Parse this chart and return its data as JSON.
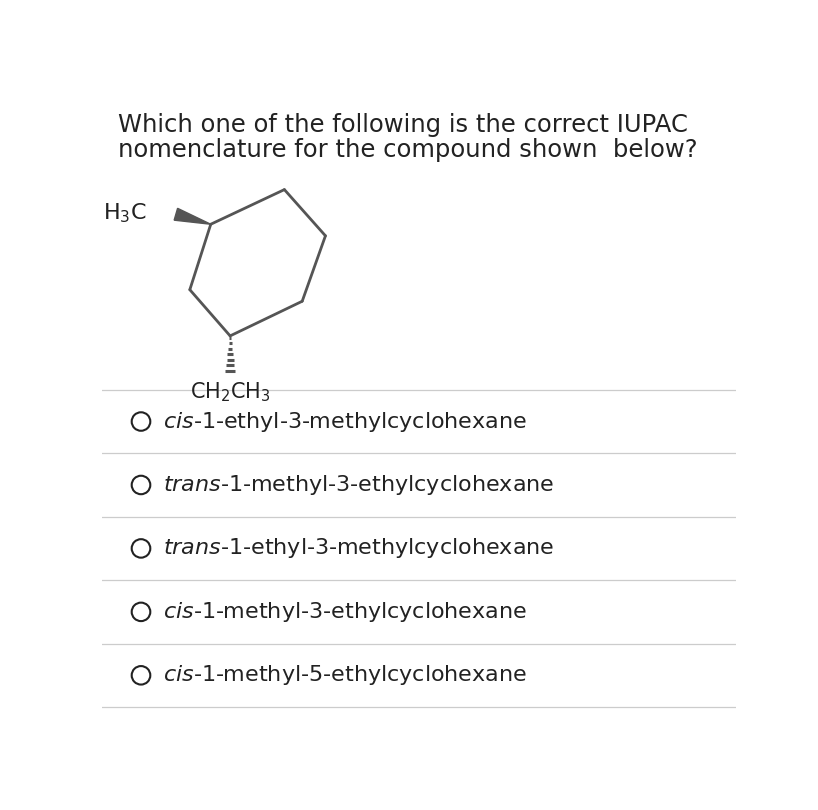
{
  "title_line1": "Which one of the following is the correct IUPAC",
  "title_line2": "nomenclature for the compound shown  below?",
  "title_fontsize": 17.5,
  "title_color": "#222222",
  "bg_color": "#ffffff",
  "options": [
    {
      "label_italic": "cis",
      "label_rest": "-1-ethyl-3-methylcyclohexane"
    },
    {
      "label_italic": "trans",
      "label_rest": "-1-methyl-3-ethylcyclohexane"
    },
    {
      "label_italic": "trans",
      "label_rest": "-1-ethyl-3-methylcyclohexane"
    },
    {
      "label_italic": "cis",
      "label_rest": "-1-methyl-3-ethylcyclohexane"
    },
    {
      "label_italic": "cis",
      "label_rest": "-1-methyl-5-ethylcyclohexane"
    }
  ],
  "option_fontsize": 16,
  "option_color": "#222222",
  "line_color": "#cccccc",
  "circle_color": "#222222",
  "structure_color": "#555555"
}
